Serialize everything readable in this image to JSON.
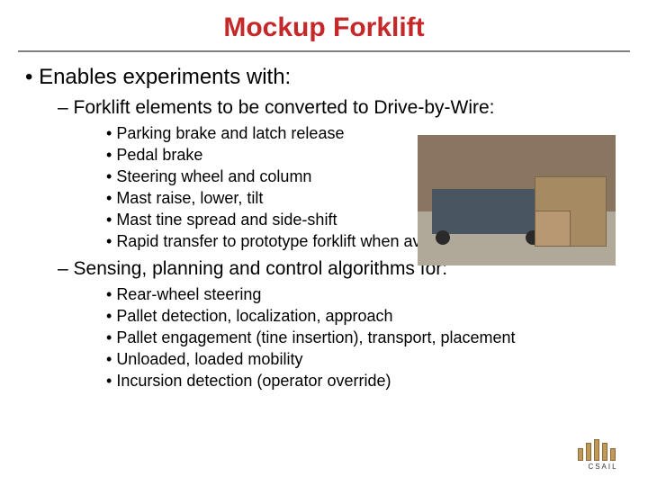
{
  "title": {
    "text": "Mockup Forklift",
    "color": "#c52828",
    "fontsize": 30
  },
  "rule_color": "#808080",
  "lvl1": {
    "bullet": "•",
    "text": "Enables experiments with:",
    "fontsize": 24,
    "color": "#000000"
  },
  "sections": [
    {
      "dash": "–",
      "text": "Forklift elements to be converted to Drive-by-Wire:",
      "fontsize": 21,
      "items": [
        "Parking brake and latch release",
        "Pedal brake",
        "Steering wheel and column",
        "Mast raise, lower, tilt",
        "Mast tine spread and side-shift",
        "Rapid transfer to prototype forklift when available"
      ],
      "item_fontsize": 18
    },
    {
      "dash": "–",
      "text": "Sensing, planning and control algorithms for:",
      "fontsize": 21,
      "items": [
        "Rear-wheel steering",
        "Pallet detection, localization, approach",
        "Pallet engagement (tine insertion), transport, placement",
        "Unloaded, loaded mobility",
        "Incursion detection (operator override)"
      ],
      "item_fontsize": 18
    }
  ],
  "photo": {
    "bg": "#8a7560",
    "floor": "#b0a898",
    "cart": "#4a5562",
    "wheel": "#2a2a2a",
    "box1": "#a68a62",
    "box2": "#b89872"
  },
  "logo": {
    "label": "CSAIL",
    "pillar_color": "#c09858"
  }
}
